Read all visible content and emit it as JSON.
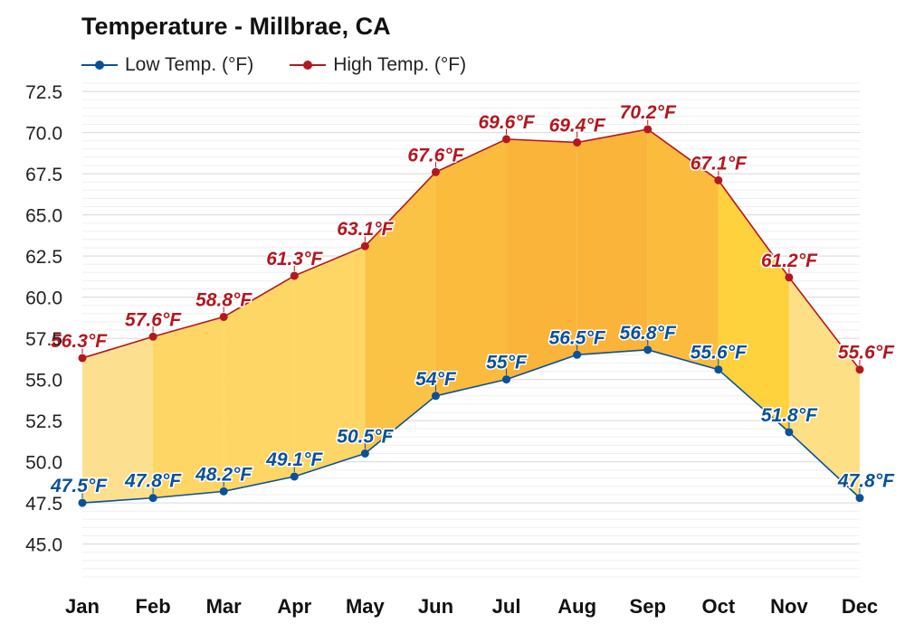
{
  "chart_data": {
    "type": "line",
    "title": "Temperature - Millbrae, CA",
    "xlabel": "",
    "ylabel": "",
    "categories": [
      "Jan",
      "Feb",
      "Mar",
      "Apr",
      "May",
      "Jun",
      "Jul",
      "Aug",
      "Sep",
      "Oct",
      "Nov",
      "Dec"
    ],
    "ylim": [
      43,
      73
    ],
    "yticks": [
      "45.0",
      "47.5",
      "50.0",
      "52.5",
      "55.0",
      "57.5",
      "60.0",
      "62.5",
      "65.0",
      "67.5",
      "70.0",
      "72.5"
    ],
    "grid": true,
    "legend_position": "top-left",
    "series": [
      {
        "name": "Low Temp. (°F)",
        "color": "#0a5199",
        "values": [
          47.5,
          47.8,
          48.2,
          49.1,
          50.5,
          54.0,
          55.0,
          56.5,
          56.8,
          55.6,
          51.8,
          47.8
        ],
        "labels": [
          "47.5°F",
          "47.8°F",
          "48.2°F",
          "49.1°F",
          "50.5°F",
          "54°F",
          "55°F",
          "56.5°F",
          "56.8°F",
          "55.6°F",
          "51.8°F",
          "47.8°F"
        ]
      },
      {
        "name": "High Temp. (°F)",
        "color": "#b3171f",
        "values": [
          56.3,
          57.6,
          58.8,
          61.3,
          63.1,
          67.6,
          69.6,
          69.4,
          70.2,
          67.1,
          61.2,
          55.6
        ],
        "labels": [
          "56.3°F",
          "57.6°F",
          "58.8°F",
          "61.3°F",
          "63.1°F",
          "67.6°F",
          "69.6°F",
          "69.4°F",
          "70.2°F",
          "67.1°F",
          "61.2°F",
          "55.6°F"
        ]
      }
    ],
    "band_fill_colors": [
      "#fde08f",
      "#fdd665",
      "#fdd665",
      "#fdd665",
      "#fbc345",
      "#fbbb3d",
      "#fab43a",
      "#fab43a",
      "#fbbb3d",
      "#fdd23d",
      "#fddf85",
      "#fde08f"
    ]
  }
}
